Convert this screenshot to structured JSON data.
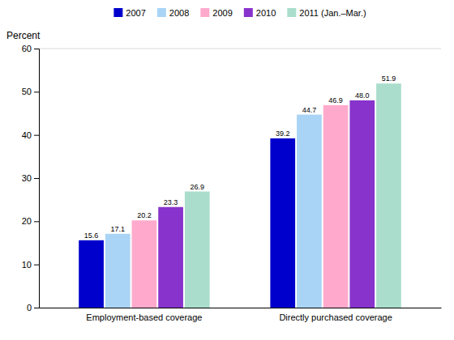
{
  "chart_data": {
    "type": "bar",
    "ylabel": "Percent",
    "categories": [
      "Employment-based coverage",
      "Directly purchased coverage"
    ],
    "series": [
      {
        "name": "2007",
        "color": "#0000cc",
        "values": [
          15.6,
          39.2
        ],
        "value_labels": [
          "15.6",
          "39.2"
        ]
      },
      {
        "name": "2008",
        "color": "#aad4f5",
        "values": [
          17.1,
          44.7
        ],
        "value_labels": [
          "17.1",
          "44.7"
        ]
      },
      {
        "name": "2009",
        "color": "#ffaacc",
        "values": [
          20.2,
          46.9
        ],
        "value_labels": [
          "20.2",
          "46.9"
        ]
      },
      {
        "name": "2010",
        "color": "#8833cc",
        "values": [
          23.3,
          48.0
        ],
        "value_labels": [
          "23.3",
          "48.0"
        ]
      },
      {
        "name": "2011 (Jan.–Mar.)",
        "color": "#aaddcc",
        "values": [
          26.9,
          51.9
        ],
        "value_labels": [
          "26.9",
          "51.9"
        ]
      }
    ],
    "ylim": [
      0,
      60
    ],
    "yticks": [
      0,
      10,
      20,
      30,
      40,
      50,
      60
    ],
    "grid": false,
    "legend": "top",
    "data_labels": true
  }
}
